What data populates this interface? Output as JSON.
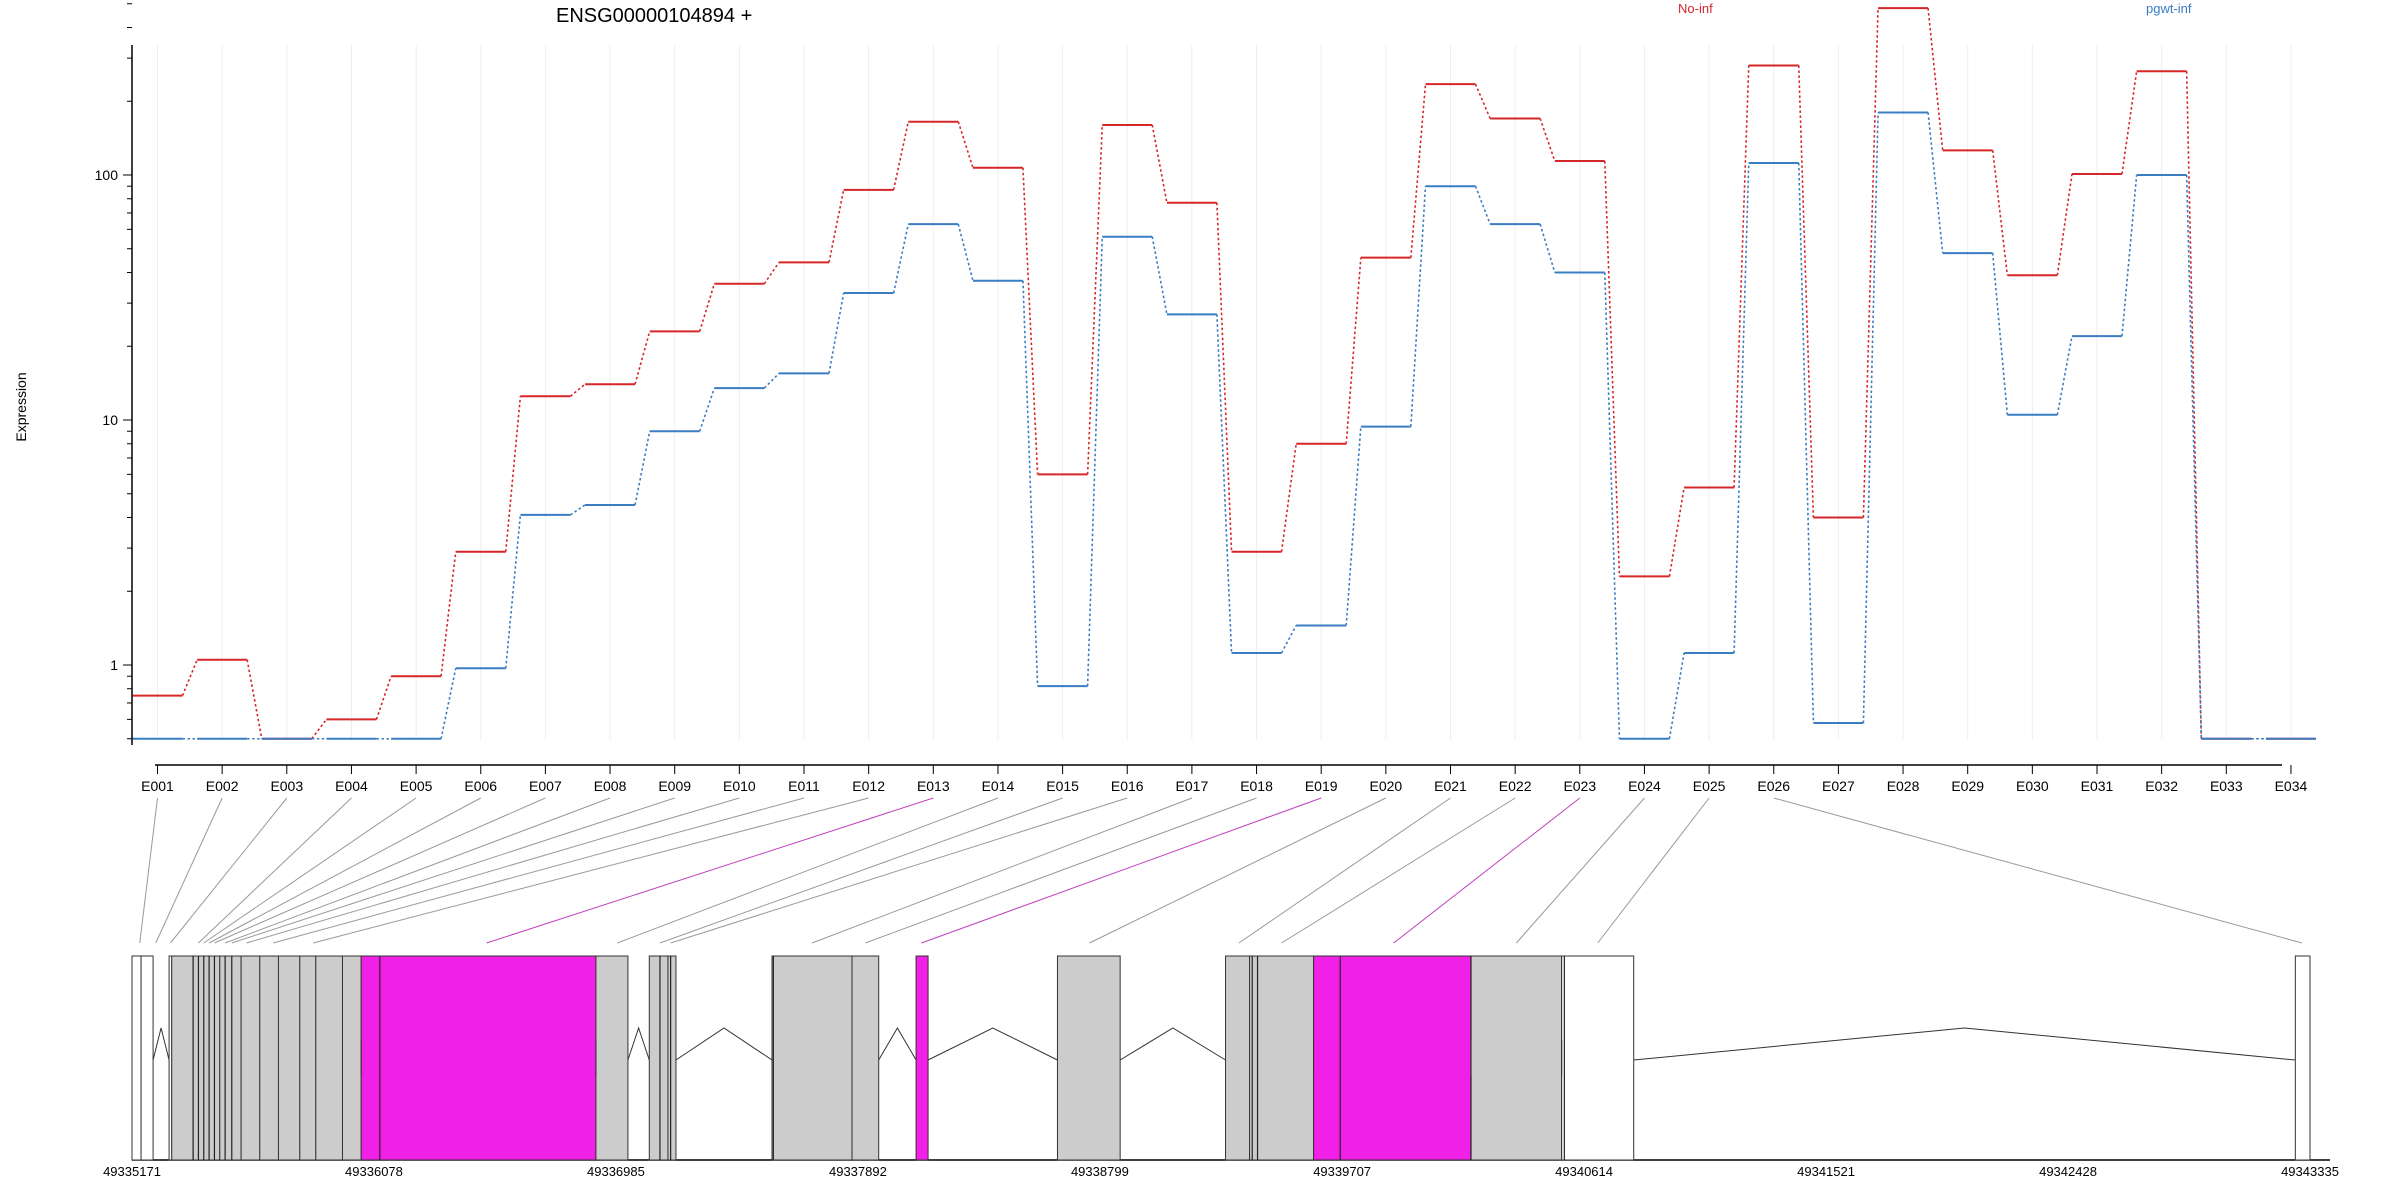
{
  "chart_data": {
    "type": "line",
    "title": "ENSG00000104894 +",
    "ylabel": "Expression",
    "y_scale": "log",
    "ylim": [
      0.5,
      600
    ],
    "y_ticks": [
      {
        "value": 1,
        "label": "1"
      },
      {
        "value": 10,
        "label": "10"
      },
      {
        "value": 100,
        "label": "100"
      }
    ],
    "grid": "vertical lines at exons",
    "categories": [
      "E001",
      "E002",
      "E003",
      "E004",
      "E005",
      "E006",
      "E007",
      "E008",
      "E009",
      "E010",
      "E011",
      "E012",
      "E013",
      "E014",
      "E015",
      "E016",
      "E017",
      "E018",
      "E019",
      "E020",
      "E021",
      "E022",
      "E023",
      "E024",
      "E025",
      "E026",
      "E027",
      "E028",
      "E029",
      "E030",
      "E031",
      "E032",
      "E033",
      "E034"
    ],
    "series": [
      {
        "name": "No-inf",
        "color": "#d62728",
        "values": [
          0.75,
          1.05,
          0.5,
          0.6,
          0.9,
          2.9,
          12.5,
          14,
          23,
          36,
          44,
          87,
          165,
          107,
          6,
          160,
          77,
          2.9,
          8,
          46,
          235,
          170,
          114,
          2.3,
          5.3,
          280,
          4,
          480,
          126,
          39,
          101,
          265,
          0.5,
          0.5
        ]
      },
      {
        "name": "pgwt-inf",
        "color": "#3a7dc3",
        "values": [
          0.5,
          0.5,
          0.5,
          0.5,
          0.5,
          0.97,
          4.1,
          4.5,
          9,
          13.5,
          15.5,
          33,
          63,
          37,
          0.82,
          56,
          27,
          1.12,
          1.45,
          9.4,
          90,
          63,
          40,
          0.5,
          1.12,
          112,
          0.58,
          180,
          48,
          10.5,
          22,
          100,
          0.5,
          0.5
        ]
      }
    ],
    "legend": "top-right",
    "gene_model": {
      "x_ticks": [
        {
          "value": 49335171,
          "label": "49335171"
        },
        {
          "value": 49336078,
          "label": "49336078"
        },
        {
          "value": 49336985,
          "label": "49336985"
        },
        {
          "value": 49337892,
          "label": "49337892"
        },
        {
          "value": 49338799,
          "label": "49338799"
        },
        {
          "value": 49339707,
          "label": "49339707"
        },
        {
          "value": 49340614,
          "label": "49340614"
        },
        {
          "value": 49341521,
          "label": "49341521"
        },
        {
          "value": 49342428,
          "label": "49342428"
        },
        {
          "value": 49343335,
          "label": "49343335"
        }
      ],
      "xlim": [
        49335171,
        49343335
      ],
      "exons": [
        {
          "id": "E001",
          "start": 49335171,
          "end": 49335205,
          "fill": "white"
        },
        {
          "id": "E002",
          "start": 49335205,
          "end": 49335250,
          "fill": "white"
        },
        {
          "id": "E003",
          "start": 49335310,
          "end": 49335320,
          "fill": "white"
        },
        {
          "id": "E004",
          "start": 49335320,
          "end": 49335400,
          "fill": "gray"
        },
        {
          "id": "E005",
          "start": 49335400,
          "end": 49335500,
          "fill": "gray"
        },
        {
          "id": "E006",
          "start": 49335500,
          "end": 49335580,
          "fill": "gray"
        },
        {
          "id": "E007",
          "start": 49335580,
          "end": 49335650,
          "fill": "gray"
        },
        {
          "id": "E008",
          "start": 49335650,
          "end": 49335720,
          "fill": "gray"
        },
        {
          "id": "E009",
          "start": 49335720,
          "end": 49335800,
          "fill": "gray"
        },
        {
          "id": "E010",
          "start": 49335800,
          "end": 49335860,
          "fill": "gray"
        },
        {
          "id": "E011",
          "start": 49335860,
          "end": 49335960,
          "fill": "gray"
        },
        {
          "id": "E012",
          "start": 49335960,
          "end": 49336030,
          "fill": "gray"
        },
        {
          "id": "E013",
          "start": 49336030,
          "end": 49336910,
          "fill": "magenta"
        },
        {
          "id": "E014",
          "start": 49336910,
          "end": 49337030,
          "fill": "gray"
        },
        {
          "id": "E015",
          "start": 49337110,
          "end": 49337180,
          "fill": "gray"
        },
        {
          "id": "E016",
          "start": 49337180,
          "end": 49337210,
          "fill": "gray"
        },
        {
          "id": "E017",
          "start": 49337570,
          "end": 49337870,
          "fill": "gray"
        },
        {
          "id": "E018",
          "start": 49337870,
          "end": 49337970,
          "fill": "gray"
        },
        {
          "id": "E019",
          "start": 49338110,
          "end": 49338155,
          "fill": "magenta"
        },
        {
          "id": "E020",
          "start": 49338640,
          "end": 49338875,
          "fill": "gray"
        },
        {
          "id": "E021",
          "start": 49339270,
          "end": 49339360,
          "fill": "gray"
        },
        {
          "id": "E022",
          "start": 49339360,
          "end": 49339600,
          "fill": "gray"
        },
        {
          "id": "E023",
          "start": 49339600,
          "end": 49340190,
          "fill": "magenta"
        },
        {
          "id": "E024",
          "start": 49340190,
          "end": 49340530,
          "fill": "gray"
        },
        {
          "id": "E025",
          "start": 49340530,
          "end": 49340800,
          "fill": "white"
        },
        {
          "id": "E026",
          "start": 49343280,
          "end": 49343335,
          "fill": "white"
        }
      ],
      "ticks_inside": [
        49335400,
        49335420,
        49335440,
        49335460,
        49335480,
        49335520,
        49335545,
        49336100,
        49337150,
        49337190,
        49337575,
        49339370,
        49339390,
        49339700,
        49340190,
        49340540
      ],
      "introns": [
        {
          "from": 49335205,
          "to": 49335250,
          "fill": "white"
        },
        {
          "from": 49335250,
          "to": 49335310
        },
        {
          "from": 49337030,
          "to": 49337110
        },
        {
          "from": 49337210,
          "to": 49337570
        },
        {
          "from": 49337970,
          "to": 49338110
        },
        {
          "from": 49338155,
          "to": 49338640
        },
        {
          "from": 49338875,
          "to": 49339270
        },
        {
          "from": 49340800,
          "to": 49343280
        }
      ],
      "connectors": [
        {
          "exon": "E001",
          "to": 49335200,
          "color": "gray"
        },
        {
          "exon": "E002",
          "to": 49335260,
          "color": "gray"
        },
        {
          "exon": "E003",
          "to": 49335315,
          "color": "gray"
        },
        {
          "exon": "E004",
          "to": 49335420,
          "color": "gray"
        },
        {
          "exon": "E005",
          "to": 49335440,
          "color": "gray"
        },
        {
          "exon": "E006",
          "to": 49335460,
          "color": "gray"
        },
        {
          "exon": "E007",
          "to": 49335480,
          "color": "gray"
        },
        {
          "exon": "E008",
          "to": 49335520,
          "color": "gray"
        },
        {
          "exon": "E009",
          "to": 49335545,
          "color": "gray"
        },
        {
          "exon": "E010",
          "to": 49335600,
          "color": "gray"
        },
        {
          "exon": "E011",
          "to": 49335700,
          "color": "gray"
        },
        {
          "exon": "E012",
          "to": 49335850,
          "color": "gray"
        },
        {
          "exon": "E013",
          "to": 49336500,
          "color": "magenta"
        },
        {
          "exon": "E014",
          "to": 49336990,
          "color": "gray"
        },
        {
          "exon": "E015",
          "to": 49337150,
          "color": "gray"
        },
        {
          "exon": "E016",
          "to": 49337190,
          "color": "gray"
        },
        {
          "exon": "E017",
          "to": 49337720,
          "color": "gray"
        },
        {
          "exon": "E018",
          "to": 49337920,
          "color": "gray"
        },
        {
          "exon": "E019",
          "to": 49338130,
          "color": "magenta"
        },
        {
          "exon": "E020",
          "to": 49338760,
          "color": "gray"
        },
        {
          "exon": "E021",
          "to": 49339320,
          "color": "gray"
        },
        {
          "exon": "E022",
          "to": 49339480,
          "color": "gray"
        },
        {
          "exon": "E023",
          "to": 49339900,
          "color": "magenta"
        },
        {
          "exon": "E024",
          "to": 49340360,
          "color": "gray"
        },
        {
          "exon": "E025",
          "to": 49340665,
          "color": "gray"
        },
        {
          "exon": "E026",
          "to": 49343305,
          "color": "gray"
        }
      ]
    }
  }
}
